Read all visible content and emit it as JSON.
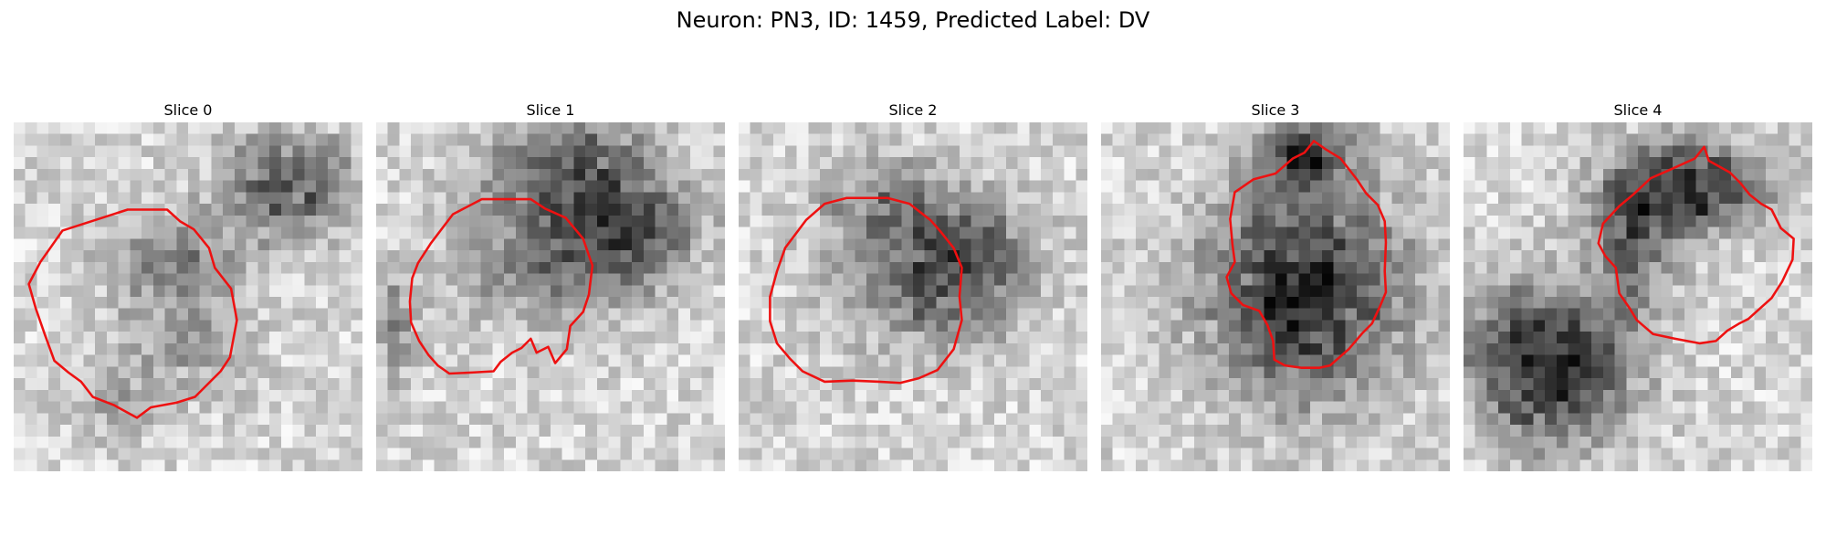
{
  "figure": {
    "title": "Neuron: PN3, ID: 1459, Predicted Label: DV",
    "contour_color": "#ee1111",
    "colormap": "gray"
  },
  "panels": [
    {
      "title": "Slice 0"
    },
    {
      "title": "Slice 1"
    },
    {
      "title": "Slice 2"
    },
    {
      "title": "Slice 3"
    },
    {
      "title": "Slice 4"
    }
  ]
}
